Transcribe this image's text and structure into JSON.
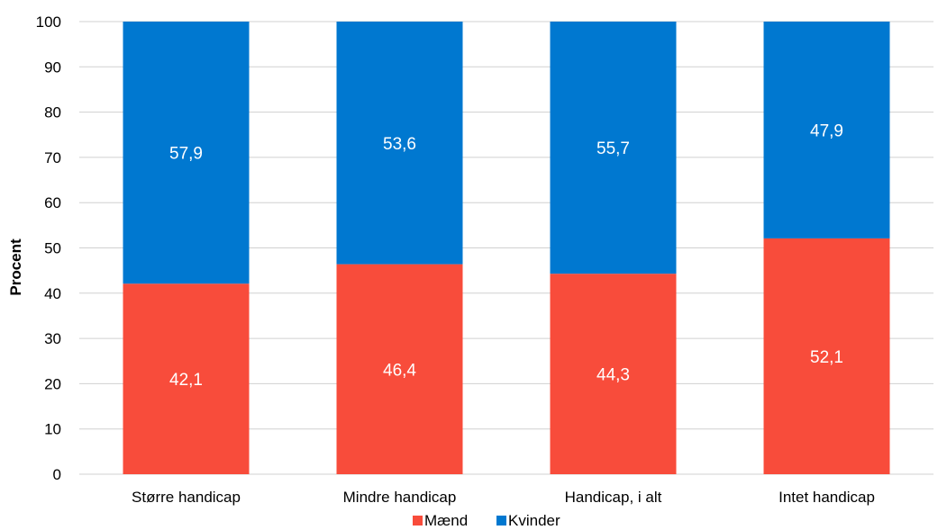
{
  "chart_data": {
    "type": "bar",
    "stacked": true,
    "categories": [
      "Større handicap",
      "Mindre handicap",
      "Handicap, i alt",
      "Intet handicap"
    ],
    "series": [
      {
        "name": "Mænd",
        "color": "#f84c3b",
        "values": [
          42.1,
          46.4,
          44.3,
          52.1
        ],
        "labels": [
          "42,1",
          "46,4",
          "44,3",
          "52,1"
        ]
      },
      {
        "name": "Kvinder",
        "color": "#0078d0",
        "values": [
          57.9,
          53.6,
          55.7,
          47.9
        ],
        "labels": [
          "57,9",
          "53,6",
          "55,7",
          "47,9"
        ]
      }
    ],
    "title": "",
    "xlabel": "",
    "ylabel": "Procent",
    "ylim": [
      0,
      100
    ],
    "yticks": [
      "0",
      "10",
      "20",
      "30",
      "40",
      "50",
      "60",
      "70",
      "80",
      "90",
      "100"
    ],
    "grid": true,
    "legend": "bottom",
    "gridline_color": "#d0d0d0"
  }
}
